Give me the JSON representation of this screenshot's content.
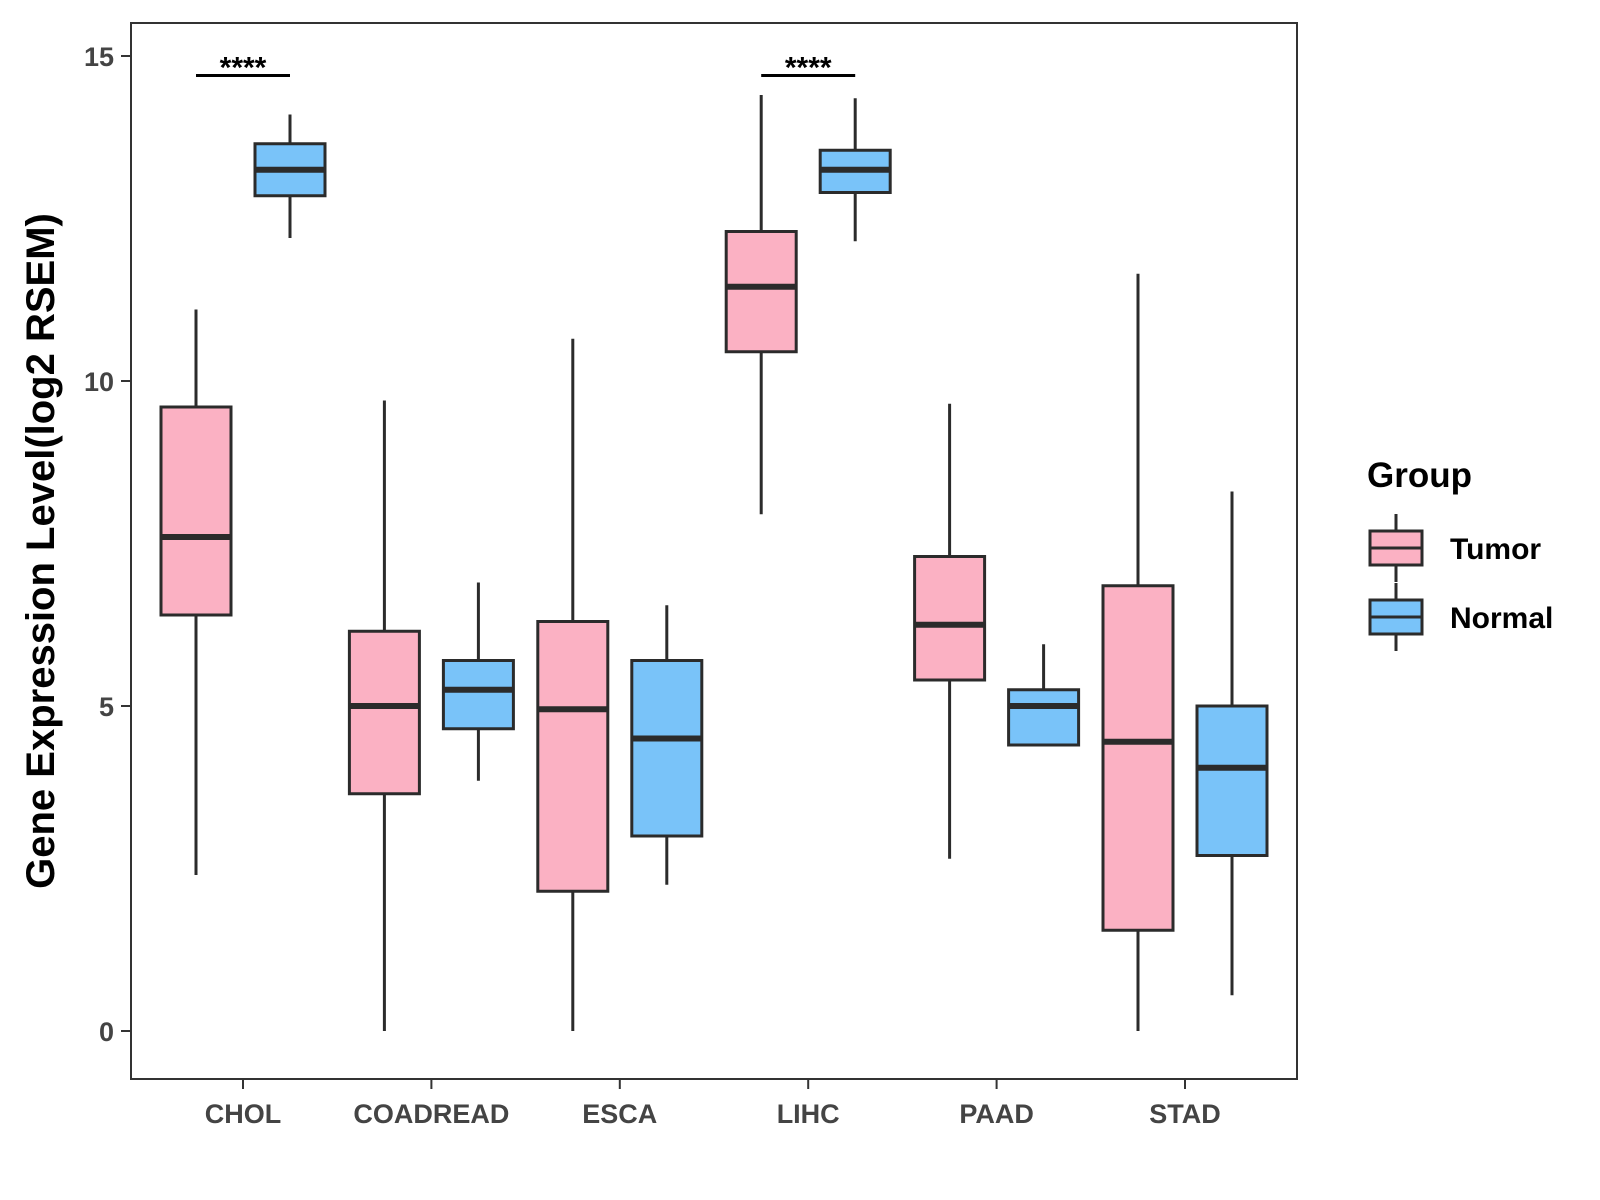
{
  "chart_data": {
    "type": "boxplot",
    "title": "",
    "xlabel": "",
    "ylabel": "Gene Expression Level(log2 RSEM)",
    "ylim": [
      -0.7,
      15.5
    ],
    "yticks": [
      0,
      5,
      10,
      15
    ],
    "grid": false,
    "categories": [
      "CHOL",
      "COADREAD",
      "ESCA",
      "LIHC",
      "PAAD",
      "STAD"
    ],
    "legend": {
      "title": "Group",
      "position": "right",
      "entries": [
        {
          "name": "Tumor",
          "color": "#FBB1C3"
        },
        {
          "name": "Normal",
          "color": "#79C3F9"
        }
      ]
    },
    "series": [
      {
        "name": "Tumor",
        "color": "#FBB1C3",
        "boxes": [
          {
            "min": 2.4,
            "q1": 6.4,
            "median": 7.6,
            "q3": 9.6,
            "max": 11.1
          },
          {
            "min": 0.0,
            "q1": 3.65,
            "median": 5.0,
            "q3": 6.15,
            "max": 9.7
          },
          {
            "min": 0.0,
            "q1": 2.15,
            "median": 4.95,
            "q3": 6.3,
            "max": 10.65
          },
          {
            "min": 7.95,
            "q1": 10.45,
            "median": 11.45,
            "q3": 12.3,
            "max": 14.4
          },
          {
            "min": 2.65,
            "q1": 5.4,
            "median": 6.25,
            "q3": 7.3,
            "max": 9.65
          },
          {
            "min": 0.0,
            "q1": 1.55,
            "median": 4.45,
            "q3": 6.85,
            "max": 11.65
          }
        ]
      },
      {
        "name": "Normal",
        "color": "#79C3F9",
        "boxes": [
          {
            "min": 12.2,
            "q1": 12.85,
            "median": 13.25,
            "q3": 13.65,
            "max": 14.1
          },
          {
            "min": 3.85,
            "q1": 4.65,
            "median": 5.25,
            "q3": 5.7,
            "max": 6.9
          },
          {
            "min": 2.25,
            "q1": 3.0,
            "median": 4.5,
            "q3": 5.7,
            "max": 6.55
          },
          {
            "min": 12.15,
            "q1": 12.9,
            "median": 13.25,
            "q3": 13.55,
            "max": 14.35
          },
          {
            "min": 4.4,
            "q1": 4.4,
            "median": 5.0,
            "q3": 5.25,
            "max": 5.95
          },
          {
            "min": 0.55,
            "q1": 2.7,
            "median": 4.05,
            "q3": 5.0,
            "max": 8.3
          }
        ]
      }
    ],
    "annotations": [
      {
        "category": "CHOL",
        "label": "****",
        "y": 14.7
      },
      {
        "category": "LIHC",
        "label": "****",
        "y": 14.7
      }
    ]
  }
}
